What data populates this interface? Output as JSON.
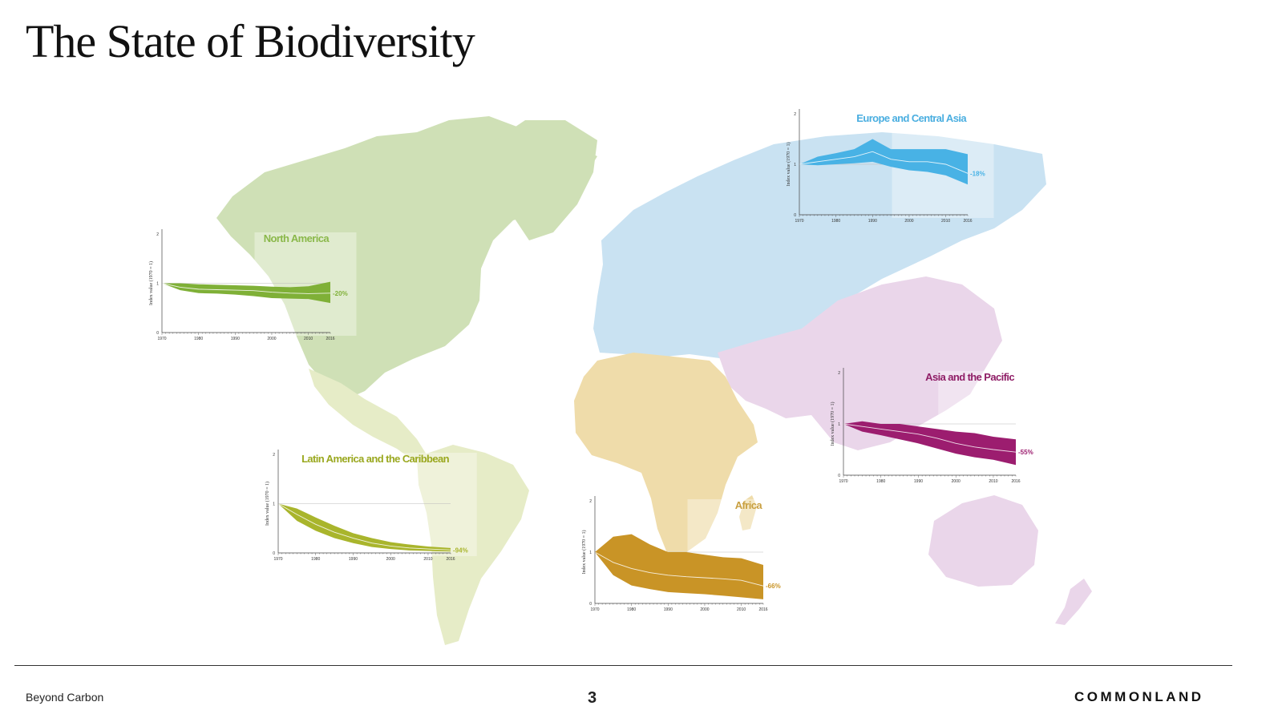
{
  "slide": {
    "title": "The State of Biodiversity",
    "footer_left": "Beyond Carbon",
    "page_number": "3",
    "brand": "COMMONLAND"
  },
  "region_colors": {
    "north_america": "#cfe0b6",
    "latin_america": "#e6ecc7",
    "europe_central_asia": "#c9e2f2",
    "africa": "#efdcaa",
    "asia_pacific": "#ead6ea"
  },
  "chart_data": [
    {
      "type": "area",
      "title": "North America",
      "color": "#7fb037",
      "title_color": "#8ab84a",
      "ylabel": "Index value (1970 = 1)",
      "x": [
        1970,
        1975,
        1980,
        1985,
        1990,
        1995,
        2000,
        2005,
        2010,
        2016
      ],
      "x_ticks": [
        "1970",
        "1980",
        "1990",
        "2000",
        "2010",
        "2016"
      ],
      "y_ticks": [
        "0",
        "1",
        "2"
      ],
      "ylim": [
        0,
        2
      ],
      "series": [
        {
          "name": "upper",
          "values": [
            1.0,
            1.0,
            0.98,
            0.97,
            0.96,
            0.95,
            0.93,
            0.92,
            0.94,
            1.03
          ]
        },
        {
          "name": "mean",
          "values": [
            1.0,
            0.92,
            0.88,
            0.87,
            0.86,
            0.85,
            0.82,
            0.8,
            0.79,
            0.8
          ]
        },
        {
          "name": "lower",
          "values": [
            1.0,
            0.86,
            0.8,
            0.79,
            0.77,
            0.74,
            0.7,
            0.69,
            0.68,
            0.6
          ]
        }
      ],
      "end_label": "-20%"
    },
    {
      "type": "area",
      "title": "Latin America and the Caribbean",
      "color": "#a9b52c",
      "title_color": "#9aa81f",
      "ylabel": "Index value (1970 = 1)",
      "x": [
        1970,
        1975,
        1980,
        1985,
        1990,
        1995,
        2000,
        2005,
        2010,
        2016
      ],
      "x_ticks": [
        "1970",
        "1980",
        "1990",
        "2000",
        "2010",
        "2016"
      ],
      "y_ticks": [
        "0",
        "1",
        "2"
      ],
      "ylim": [
        0,
        2
      ],
      "series": [
        {
          "name": "upper",
          "values": [
            1.0,
            0.9,
            0.72,
            0.55,
            0.4,
            0.3,
            0.22,
            0.17,
            0.13,
            0.1
          ]
        },
        {
          "name": "mean",
          "values": [
            1.0,
            0.78,
            0.58,
            0.42,
            0.3,
            0.2,
            0.14,
            0.1,
            0.08,
            0.06
          ]
        },
        {
          "name": "lower",
          "values": [
            1.0,
            0.65,
            0.45,
            0.3,
            0.2,
            0.12,
            0.08,
            0.05,
            0.04,
            0.03
          ]
        }
      ],
      "end_label": "-94%"
    },
    {
      "type": "area",
      "title": "Europe and Central Asia",
      "color": "#48b2e5",
      "title_color": "#4aaee0",
      "ylabel": "Index value (1970 = 1)",
      "x": [
        1970,
        1975,
        1980,
        1985,
        1990,
        1995,
        2000,
        2005,
        2010,
        2016
      ],
      "x_ticks": [
        "1970",
        "1980",
        "1990",
        "2000",
        "2010",
        "2016"
      ],
      "y_ticks": [
        "0",
        "1",
        "2"
      ],
      "ylim": [
        0,
        2
      ],
      "series": [
        {
          "name": "upper",
          "values": [
            1.0,
            1.15,
            1.22,
            1.3,
            1.5,
            1.3,
            1.3,
            1.3,
            1.3,
            1.2
          ]
        },
        {
          "name": "mean",
          "values": [
            1.0,
            1.05,
            1.1,
            1.15,
            1.25,
            1.1,
            1.05,
            1.05,
            1.0,
            0.82
          ]
        },
        {
          "name": "lower",
          "values": [
            1.0,
            0.98,
            1.0,
            1.02,
            1.05,
            0.95,
            0.88,
            0.85,
            0.78,
            0.6
          ]
        }
      ],
      "end_label": "-18%"
    },
    {
      "type": "area",
      "title": "Africa",
      "color": "#c99426",
      "title_color": "#c9a041",
      "ylabel": "Index value (1970 = 1)",
      "x": [
        1970,
        1975,
        1980,
        1985,
        1990,
        1995,
        2000,
        2005,
        2010,
        2016
      ],
      "x_ticks": [
        "1970",
        "1980",
        "1990",
        "2000",
        "2010",
        "2016"
      ],
      "y_ticks": [
        "0",
        "1",
        "2"
      ],
      "ylim": [
        0,
        2
      ],
      "series": [
        {
          "name": "upper",
          "values": [
            1.0,
            1.3,
            1.35,
            1.15,
            1.0,
            1.0,
            0.95,
            0.9,
            0.88,
            0.75
          ]
        },
        {
          "name": "mean",
          "values": [
            1.0,
            0.8,
            0.68,
            0.6,
            0.55,
            0.52,
            0.5,
            0.48,
            0.45,
            0.34
          ]
        },
        {
          "name": "lower",
          "values": [
            1.0,
            0.55,
            0.35,
            0.28,
            0.22,
            0.2,
            0.18,
            0.15,
            0.12,
            0.08
          ]
        }
      ],
      "end_label": "-66%"
    },
    {
      "type": "area",
      "title": "Asia and the Pacific",
      "color": "#9c1d6f",
      "title_color": "#8f1d66",
      "ylabel": "Index value (1970 = 1)",
      "x": [
        1970,
        1975,
        1980,
        1985,
        1990,
        1995,
        2000,
        2005,
        2010,
        2016
      ],
      "x_ticks": [
        "1970",
        "1980",
        "1990",
        "2000",
        "2010",
        "2016"
      ],
      "y_ticks": [
        "0",
        "1",
        "2"
      ],
      "ylim": [
        0,
        2
      ],
      "series": [
        {
          "name": "upper",
          "values": [
            1.0,
            1.05,
            1.0,
            1.0,
            0.95,
            0.9,
            0.85,
            0.82,
            0.75,
            0.7
          ]
        },
        {
          "name": "mean",
          "values": [
            1.0,
            0.95,
            0.9,
            0.85,
            0.8,
            0.72,
            0.62,
            0.55,
            0.5,
            0.45
          ]
        },
        {
          "name": "lower",
          "values": [
            1.0,
            0.85,
            0.78,
            0.7,
            0.62,
            0.52,
            0.42,
            0.35,
            0.3,
            0.2
          ]
        }
      ],
      "end_label": "-55%"
    }
  ]
}
